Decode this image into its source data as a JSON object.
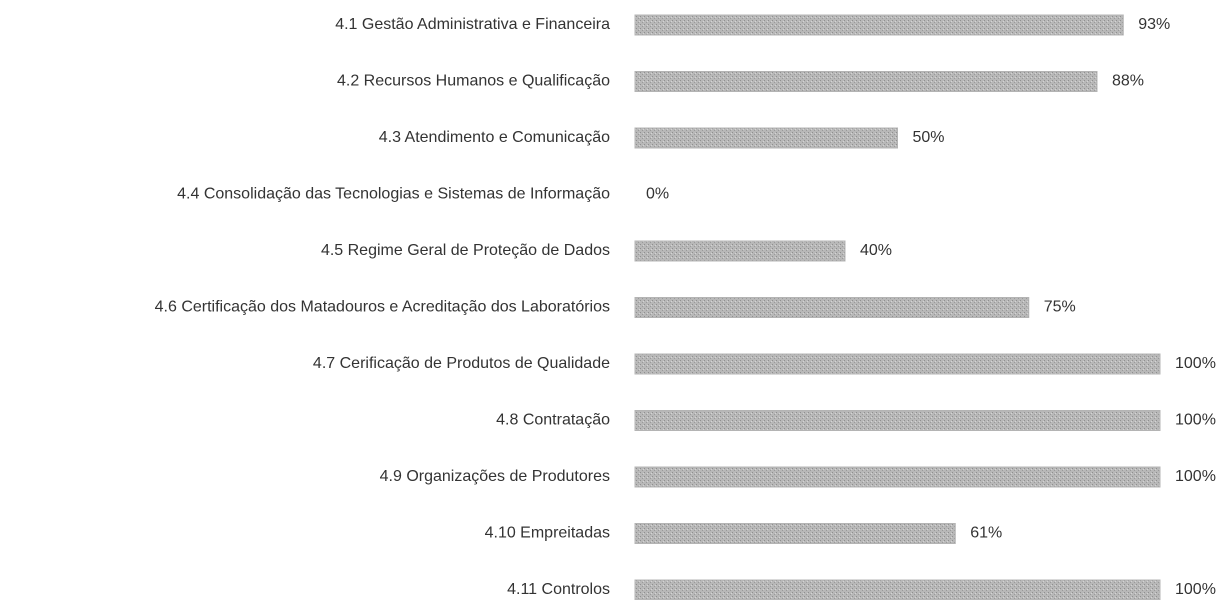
{
  "chart_data": {
    "type": "barh",
    "categories": [
      "4.1 Gestão Administrativa e Financeira",
      "4.2 Recursos Humanos e Qualificação",
      "4.3 Atendimento e Comunicação",
      "4.4 Consolidação das Tecnologias e Sistemas de Informação",
      "4.5 Regime Geral de Proteção de Dados",
      "4.6 Certificação dos Matadouros e Acreditação dos Laboratórios",
      "4.7 Cerificação de Produtos de Qualidade",
      "4.8 Contratação",
      "4.9 Organizações de Produtores",
      "4.10 Empreitadas",
      "4.11 Controlos"
    ],
    "values": [
      93,
      88,
      50,
      0,
      40,
      75,
      100,
      100,
      100,
      61,
      100
    ],
    "value_labels": [
      "93%",
      "88%",
      "50%",
      "0%",
      "40%",
      "75%",
      "100%",
      "100%",
      "100%",
      "61%",
      "100%"
    ],
    "color": "#b4b4b4"
  }
}
